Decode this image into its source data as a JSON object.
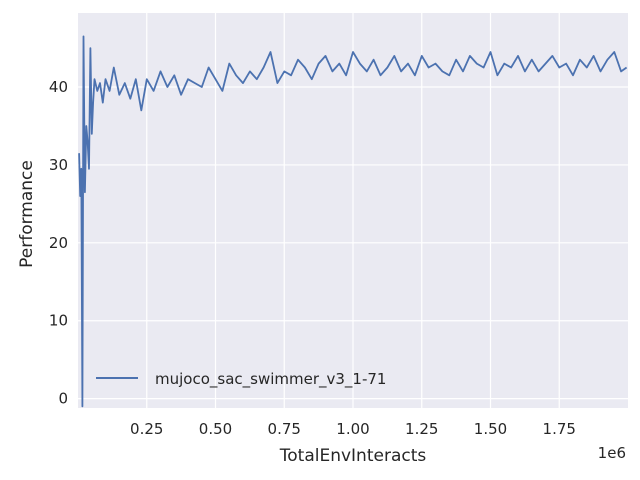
{
  "chart_data": {
    "type": "line",
    "xlabel": "TotalEnvInteracts",
    "ylabel": "Performance",
    "x_offset_label": "1e6",
    "xlim": [
      0,
      2000000
    ],
    "ylim": [
      -1.2,
      49.5
    ],
    "x_ticks": [
      250000,
      500000,
      750000,
      1000000,
      1250000,
      1500000,
      1750000
    ],
    "x_tick_labels": [
      "0.25",
      "0.50",
      "0.75",
      "1.00",
      "1.25",
      "1.50",
      "1.75"
    ],
    "y_ticks": [
      0,
      10,
      20,
      30,
      40
    ],
    "y_tick_labels": [
      "0",
      "10",
      "20",
      "30",
      "40"
    ],
    "grid": true,
    "legend": "lower-left",
    "colors": {
      "series": "#4c72b0",
      "plot_bg": "#eaeaf2",
      "grid": "#ffffff"
    },
    "series": [
      {
        "name": "mujoco_sac_swimmer_v3_1-71",
        "x": [
          4000,
          8000,
          12000,
          16000,
          20000,
          25000,
          30000,
          35000,
          40000,
          45000,
          50000,
          55000,
          60000,
          70000,
          80000,
          90000,
          100000,
          115000,
          130000,
          150000,
          170000,
          190000,
          210000,
          230000,
          250000,
          275000,
          300000,
          325000,
          350000,
          375000,
          400000,
          425000,
          450000,
          475000,
          500000,
          525000,
          550000,
          575000,
          600000,
          625000,
          650000,
          675000,
          700000,
          725000,
          750000,
          775000,
          800000,
          825000,
          850000,
          875000,
          900000,
          925000,
          950000,
          975000,
          1000000,
          1025000,
          1050000,
          1075000,
          1100000,
          1125000,
          1150000,
          1175000,
          1200000,
          1225000,
          1250000,
          1275000,
          1300000,
          1325000,
          1350000,
          1375000,
          1400000,
          1425000,
          1450000,
          1475000,
          1500000,
          1525000,
          1550000,
          1575000,
          1600000,
          1625000,
          1650000,
          1675000,
          1700000,
          1725000,
          1750000,
          1775000,
          1800000,
          1825000,
          1850000,
          1875000,
          1900000,
          1925000,
          1950000,
          1975000,
          1995000
        ],
        "y": [
          31.5,
          26,
          29.5,
          -1,
          46.5,
          26.5,
          35,
          33,
          29.5,
          45,
          34,
          38,
          41,
          39.5,
          40.5,
          38,
          41,
          39.5,
          42.5,
          39,
          40.5,
          38.5,
          41,
          37,
          41,
          39.5,
          42,
          40,
          41.5,
          39,
          41,
          40.5,
          40,
          42.5,
          41,
          39.5,
          43,
          41.5,
          40.5,
          42,
          41,
          42.5,
          44.5,
          40.5,
          42,
          41.5,
          43.5,
          42.5,
          41,
          43,
          44,
          42,
          43,
          41.5,
          44.5,
          43,
          42,
          43.5,
          41.5,
          42.5,
          44,
          42,
          43,
          41.5,
          44,
          42.5,
          43,
          42,
          41.5,
          43.5,
          42,
          44,
          43,
          42.5,
          44.5,
          41.5,
          43,
          42.5,
          44,
          42,
          43.5,
          42,
          43,
          44,
          42.5,
          43,
          41.5,
          43.5,
          42.5,
          44,
          42,
          43.5,
          44.5,
          42,
          42.5
        ]
      }
    ]
  }
}
